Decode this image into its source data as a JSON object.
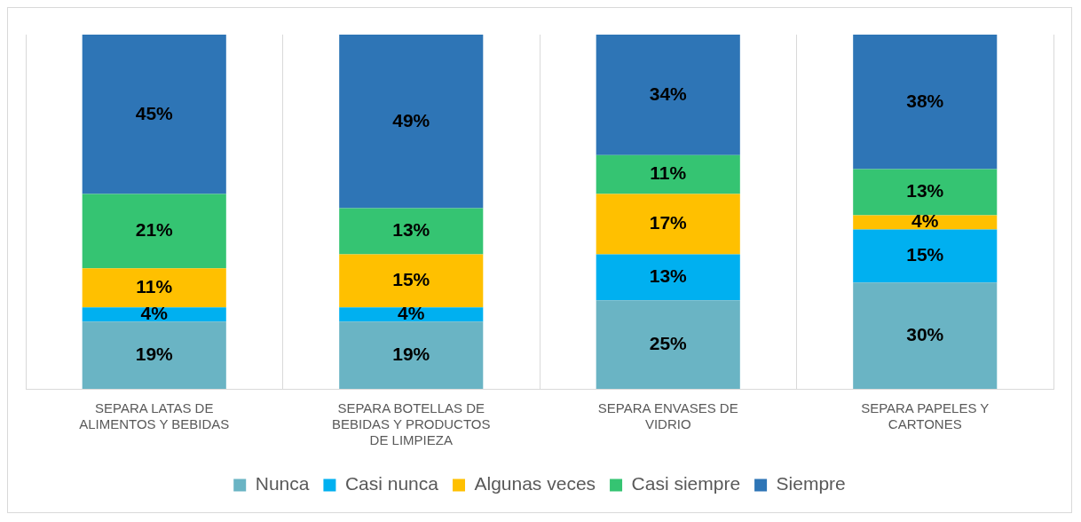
{
  "chart_data": {
    "type": "bar",
    "stacked": true,
    "grid": "x",
    "legend": "bottom",
    "categories": [
      "SEPARA LATAS DE ALIMENTOS Y BEBIDAS",
      "SEPARA BOTELLAS DE BEBIDAS Y PRODUCTOS DE LIMPIEZA",
      "SEPARA ENVASES DE VIDRIO",
      "SEPARA PAPELES Y CARTONES"
    ],
    "series": [
      {
        "name": "Nunca",
        "color": "#6ab4c4",
        "values": [
          19,
          19,
          25,
          30
        ],
        "value_labels": [
          "19%",
          "19%",
          "25%",
          "30%"
        ]
      },
      {
        "name": "Casi nunca",
        "color": "#00b0f0",
        "values": [
          4,
          4,
          13,
          15
        ],
        "value_labels": [
          "4%",
          "4%",
          "13%",
          "15%"
        ]
      },
      {
        "name": "Algunas veces",
        "color": "#ffc000",
        "values": [
          11,
          15,
          17,
          4
        ],
        "value_labels": [
          "11%",
          "15%",
          "17%",
          "4%"
        ]
      },
      {
        "name": "Casi siempre",
        "color": "#35c472",
        "values": [
          21,
          13,
          11,
          13
        ],
        "value_labels": [
          "21%",
          "13%",
          "11%",
          "13%"
        ]
      },
      {
        "name": "Siempre",
        "color": "#2e75b6",
        "values": [
          45,
          49,
          34,
          38
        ],
        "value_labels": [
          "45%",
          "49%",
          "34%",
          "38%"
        ]
      }
    ]
  }
}
